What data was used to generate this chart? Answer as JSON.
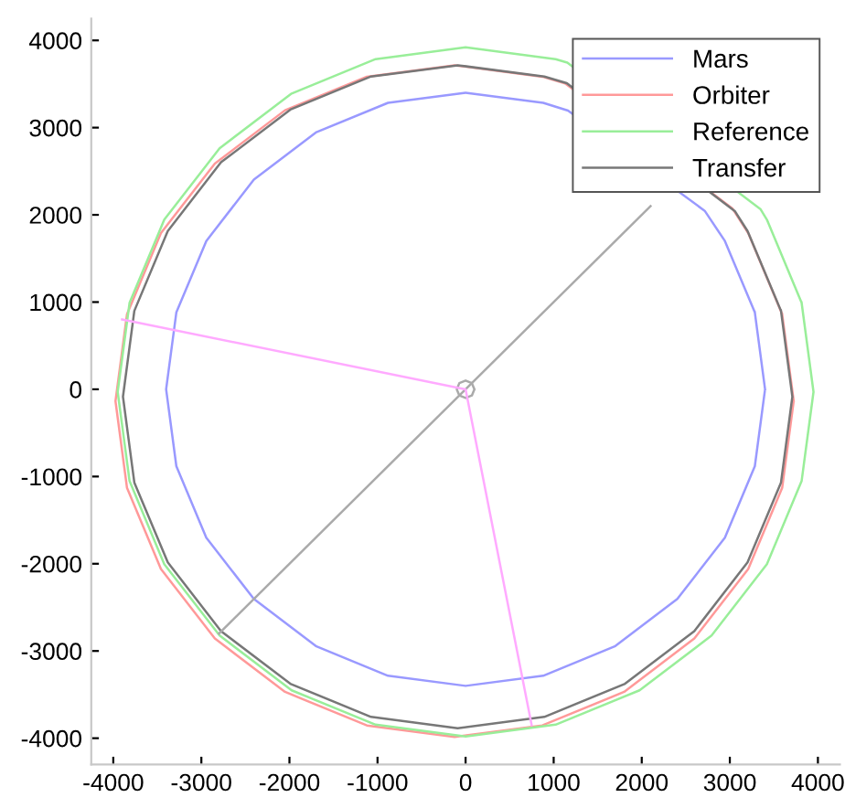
{
  "chart_data": {
    "type": "line",
    "xlim": [
      -4250,
      4250
    ],
    "ylim": [
      -4300,
      4250
    ],
    "xticks": [
      -4000,
      -3000,
      -2000,
      -1000,
      0,
      1000,
      2000,
      3000,
      4000
    ],
    "yticks": [
      -4000,
      -3000,
      -2000,
      -1000,
      0,
      1000,
      2000,
      3000,
      4000
    ],
    "grid": false,
    "legend": "top right",
    "marker": "none",
    "line_style": "solid",
    "series": [
      {
        "name": "Mars",
        "color": "#9999ff",
        "x": [
          3400,
          3284,
          2944,
          2715,
          1163,
          881,
          0,
          -881,
          -1700,
          -2404,
          -2944,
          -3284,
          -3400,
          -3284,
          -2944,
          -2404,
          -1700,
          -881,
          0,
          881,
          1700,
          2404,
          2944,
          3284,
          3400,
          3284
        ],
        "values": [
          0,
          881,
          1700,
          2046,
          3195,
          3284,
          3400,
          3284,
          2944,
          2404,
          1700,
          881,
          0,
          -881,
          -1700,
          -2404,
          -2944,
          -3284,
          -3400,
          -3284,
          -2944,
          -2404,
          -1700,
          -881,
          0,
          881
        ]
      },
      {
        "name": "Orbiter",
        "color": "#ff9999",
        "x": [
          3725,
          3594,
          3209,
          3028,
          1130,
          871,
          -125,
          -1121,
          -2050,
          -2847,
          -3459,
          -3844,
          -3975,
          -3844,
          -3459,
          -2847,
          -2050,
          -1121,
          -125,
          871,
          1800,
          2597,
          3209,
          3594,
          3725,
          3594
        ],
        "values": [
          -135,
          861,
          1790,
          2075,
          3507,
          3584,
          3715,
          3584,
          3199,
          2587,
          1790,
          861,
          -135,
          -1131,
          -2060,
          -2857,
          -3469,
          -3854,
          -3985,
          -3854,
          -3469,
          -2857,
          -2060,
          -1131,
          -135,
          861
        ]
      },
      {
        "name": "Reference",
        "color": "#99ee99",
        "x": [
          3950,
          3815,
          3421,
          3350,
          1155,
          1022,
          0,
          -1022,
          -1975,
          -2793,
          -3421,
          -3815,
          -3950,
          -3815,
          -3421,
          -2793,
          -1975,
          -1022,
          0,
          1022,
          1975,
          2793,
          3421,
          3815,
          3950,
          3815
        ],
        "values": [
          -30,
          992,
          1945,
          2063,
          3746,
          3785,
          3920,
          3785,
          3391,
          2763,
          1945,
          992,
          -30,
          -1052,
          -2005,
          -2823,
          -3451,
          -3845,
          -3980,
          -3845,
          -3451,
          -2823,
          -2005,
          -1052,
          -30,
          992
        ]
      },
      {
        "name": "Transfer",
        "color": "#777777",
        "x": [
          3710,
          3581,
          3201,
          3060,
          1149,
          894,
          -90,
          -1074,
          -1990,
          -2777,
          -3381,
          -3761,
          -3890,
          -3761,
          -3381,
          -2777,
          -1990,
          -1074,
          -90,
          894,
          1810,
          2597,
          3201,
          3581,
          3710,
          3581
        ],
        "values": [
          -85,
          899,
          1815,
          2039,
          3510,
          3586,
          3715,
          3586,
          3206,
          2602,
          1815,
          899,
          -85,
          -1069,
          -1985,
          -2772,
          -3376,
          -3756,
          -3885,
          -3756,
          -3376,
          -2772,
          -1985,
          -1069,
          -85,
          899
        ]
      },
      {
        "color": "#aaaaaa",
        "x": [
          100,
          71,
          0,
          -71,
          -100,
          -71,
          0,
          71,
          100,
          71
        ],
        "values": [
          0,
          71,
          100,
          71,
          0,
          -71,
          -100,
          -71,
          0,
          71
        ]
      },
      {
        "color": "#aaaaaa",
        "x": [
          -2800,
          2100
        ],
        "values": [
          -2800,
          2100
        ]
      },
      {
        "color": "#ffaaff",
        "x": [
          -3900,
          0,
          750
        ],
        "values": [
          800,
          0,
          -3850
        ]
      }
    ]
  }
}
